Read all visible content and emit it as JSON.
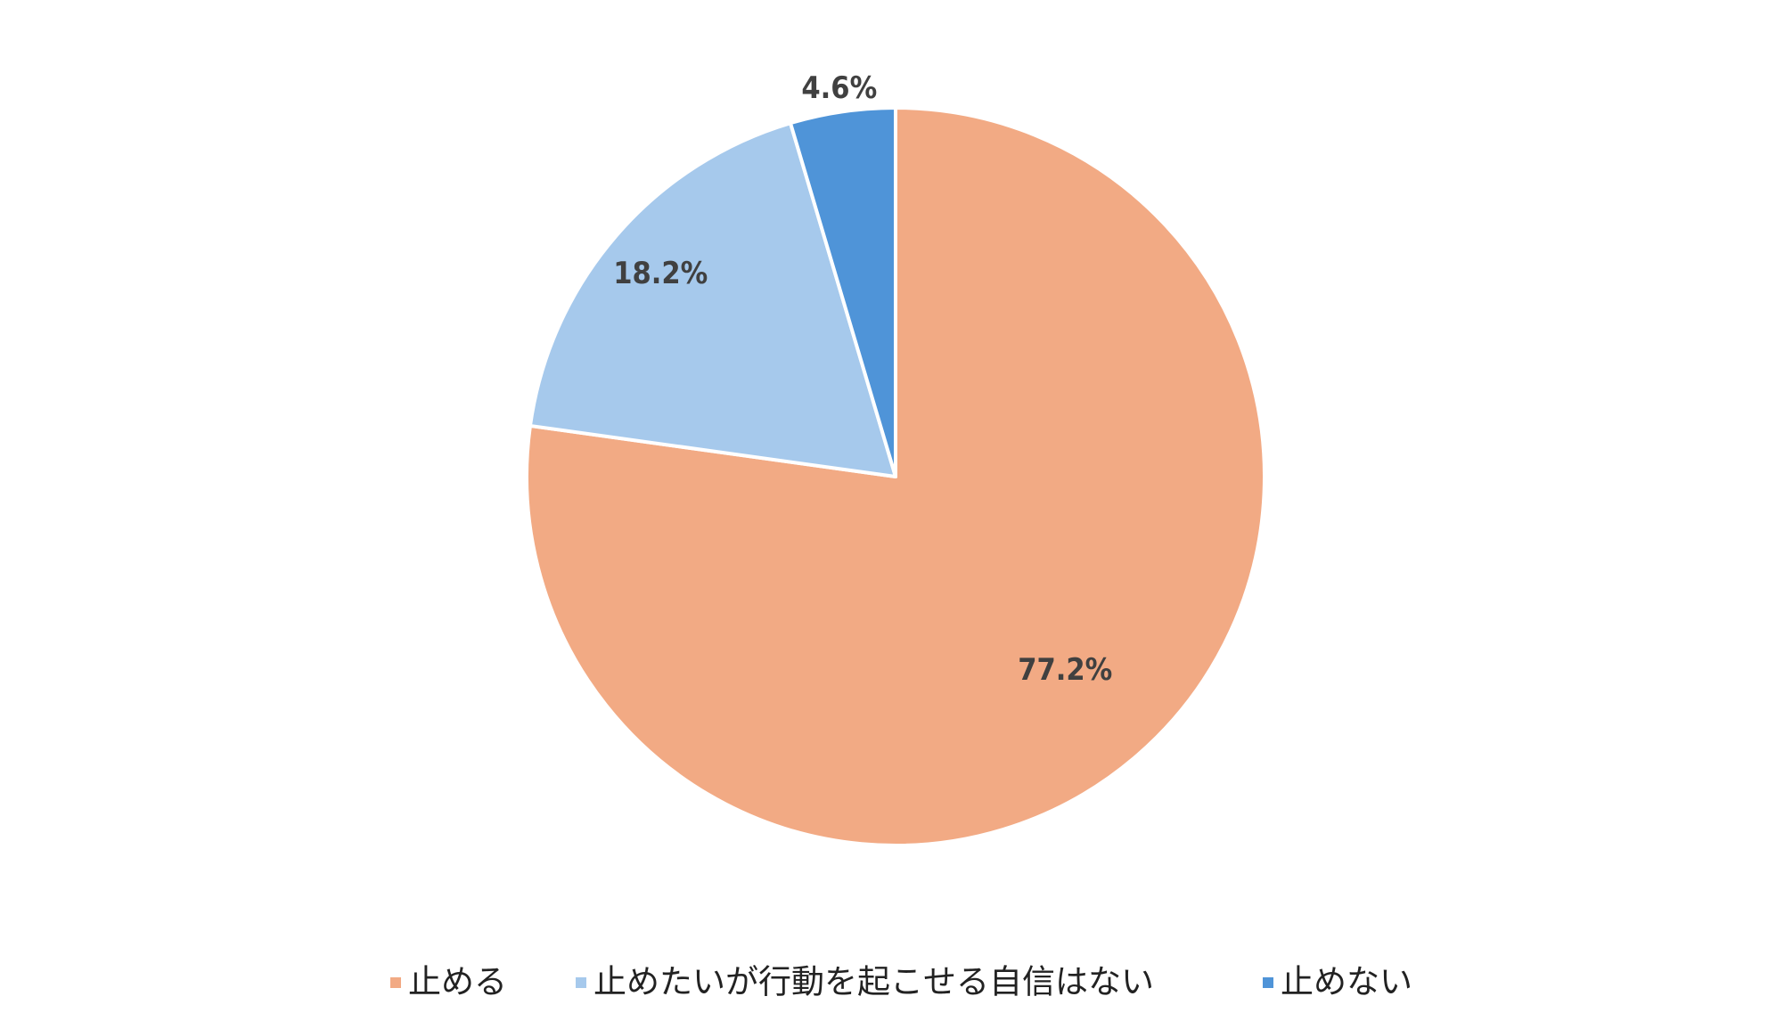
{
  "chart_data": {
    "type": "pie",
    "categories": [
      "止める",
      "止めたいが行動を起こせる自信はない",
      "止めない"
    ],
    "values": [
      77.2,
      18.2,
      4.6
    ],
    "value_labels": [
      "77.2%",
      "18.2%",
      "4.6%"
    ],
    "colors": [
      "#f2aa84",
      "#a6c9ec",
      "#4f94d8"
    ],
    "legend": "bottom"
  }
}
